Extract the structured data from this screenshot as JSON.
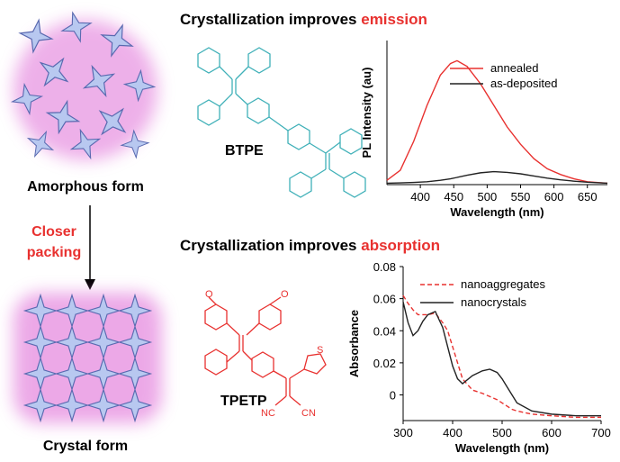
{
  "labels": {
    "amorphous": "Amorphous form",
    "crystal": "Crystal form",
    "closer": "Closer",
    "packing": "packing",
    "heading_top_prefix": "Crystallization improves ",
    "heading_top_word": "emission",
    "heading_bottom_prefix": "Crystallization improves ",
    "heading_bottom_word": "absorption",
    "btpe": "BTPE",
    "tpetp": "TPETP",
    "o1": "O",
    "o2": "O",
    "s": "S",
    "nc": "NC",
    "cn": "CN"
  },
  "chart_data": [
    {
      "type": "line",
      "xlabel": "Wavelength (nm)",
      "ylabel": "PL Intensity (au)",
      "x": [
        350,
        370,
        390,
        410,
        430,
        445,
        455,
        470,
        490,
        510,
        530,
        550,
        570,
        590,
        610,
        630,
        650,
        680
      ],
      "xlim": [
        350,
        680
      ],
      "xticks": [
        400,
        450,
        500,
        550,
        600,
        650
      ],
      "ylim": [
        0,
        1
      ],
      "series": [
        {
          "name": "annealed",
          "color": "#e8312f",
          "style": "solid",
          "values": [
            0.03,
            0.1,
            0.3,
            0.55,
            0.76,
            0.84,
            0.86,
            0.82,
            0.7,
            0.55,
            0.4,
            0.28,
            0.18,
            0.11,
            0.07,
            0.04,
            0.02,
            0.01
          ]
        },
        {
          "name": "as-deposited",
          "color": "#222222",
          "style": "solid",
          "values": [
            0.01,
            0.012,
            0.015,
            0.02,
            0.03,
            0.04,
            0.05,
            0.065,
            0.082,
            0.09,
            0.085,
            0.075,
            0.06,
            0.045,
            0.033,
            0.024,
            0.017,
            0.01
          ]
        }
      ]
    },
    {
      "type": "line",
      "xlabel": "Wavelength (nm)",
      "ylabel": "Absorbance",
      "x": [
        300,
        310,
        320,
        330,
        340,
        350,
        365,
        380,
        390,
        400,
        410,
        420,
        440,
        460,
        475,
        490,
        500,
        510,
        520,
        530,
        560,
        600,
        650,
        700
      ],
      "xlim": [
        300,
        700
      ],
      "xticks": [
        300,
        400,
        500,
        600,
        700
      ],
      "ylim": [
        -0.016,
        0.08
      ],
      "yticks": [
        0,
        0.02,
        0.04,
        0.06,
        0.08
      ],
      "series": [
        {
          "name": "nanoaggregates",
          "color": "#e8312f",
          "style": "dashed",
          "values": [
            0.062,
            0.057,
            0.053,
            0.05,
            0.05,
            0.05,
            0.051,
            0.045,
            0.04,
            0.03,
            0.02,
            0.01,
            0.003,
            0.001,
            -0.001,
            -0.003,
            -0.005,
            -0.007,
            -0.009,
            -0.01,
            -0.012,
            -0.013,
            -0.014,
            -0.014
          ]
        },
        {
          "name": "nanocrystals",
          "color": "#222222",
          "style": "solid",
          "values": [
            0.058,
            0.045,
            0.037,
            0.04,
            0.046,
            0.05,
            0.052,
            0.042,
            0.03,
            0.018,
            0.01,
            0.007,
            0.012,
            0.015,
            0.016,
            0.014,
            0.01,
            0.005,
            0,
            -0.005,
            -0.01,
            -0.012,
            -0.013,
            -0.013
          ]
        }
      ]
    }
  ]
}
